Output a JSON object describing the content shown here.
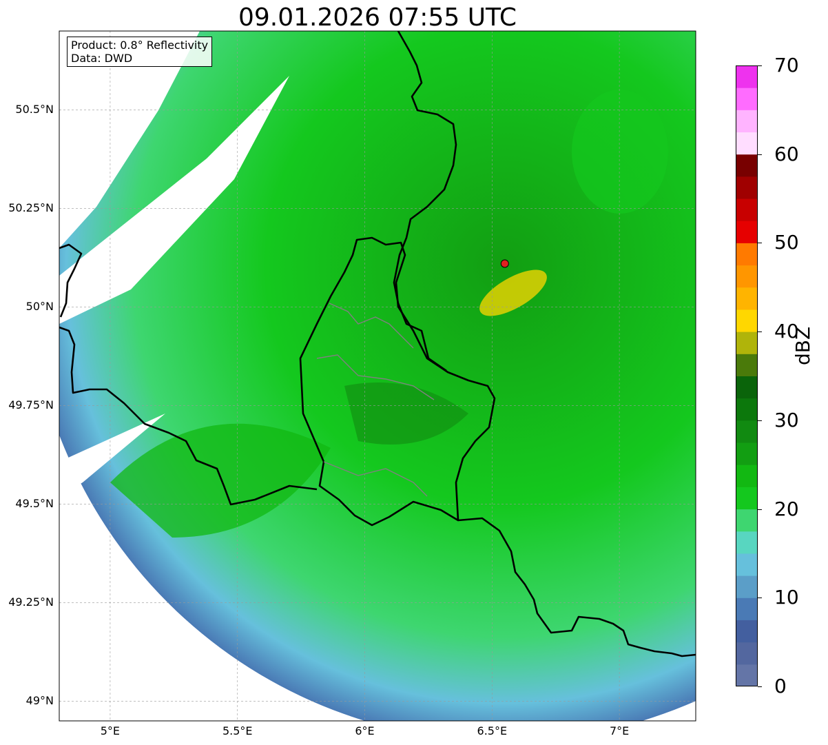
{
  "title": "09.01.2026 07:55 UTC",
  "info": {
    "line1": "Product: 0.8° Reflectivity",
    "line2": "Data: DWD"
  },
  "map": {
    "lon_range": [
      4.8,
      7.3
    ],
    "lat_range": [
      48.95,
      50.7
    ],
    "radar_site": {
      "lon": 6.55,
      "lat": 50.11,
      "color": "#e02020"
    },
    "lat_ticks": [
      {
        "value": 50.5,
        "label": "50.5°N"
      },
      {
        "value": 50.25,
        "label": "50.25°N"
      },
      {
        "value": 50.0,
        "label": "50°N"
      },
      {
        "value": 49.75,
        "label": "49.75°N"
      },
      {
        "value": 49.5,
        "label": "49.5°N"
      },
      {
        "value": 49.25,
        "label": "49.25°N"
      },
      {
        "value": 49.0,
        "label": "49°N"
      }
    ],
    "lon_ticks": [
      {
        "value": 5.0,
        "label": "5°E"
      },
      {
        "value": 5.5,
        "label": "5.5°E"
      },
      {
        "value": 6.0,
        "label": "6°E"
      },
      {
        "value": 6.5,
        "label": "6.5°E"
      },
      {
        "value": 7.0,
        "label": "7°E"
      }
    ]
  },
  "colorbar": {
    "label": "dBZ",
    "min": 0,
    "max": 70,
    "ticks": [
      {
        "value": 0,
        "label": "0"
      },
      {
        "value": 10,
        "label": "10"
      },
      {
        "value": 20,
        "label": "20"
      },
      {
        "value": 30,
        "label": "30"
      },
      {
        "value": 40,
        "label": "40"
      },
      {
        "value": 50,
        "label": "50"
      },
      {
        "value": 60,
        "label": "60"
      },
      {
        "value": 70,
        "label": "70"
      }
    ],
    "colors": [
      "#6475a7",
      "#53679f",
      "#435f9f",
      "#4a7ab5",
      "#5b9ec8",
      "#66c0dc",
      "#58d6c0",
      "#3ed670",
      "#14c81e",
      "#12b812",
      "#129e12",
      "#118a11",
      "#0c780c",
      "#0a640a",
      "#4a7a0a",
      "#b0b40a",
      "#ffd700",
      "#ffb400",
      "#ff9600",
      "#ff7a00",
      "#e60000",
      "#c80000",
      "#a00000",
      "#780000",
      "#ffddff",
      "#ffb4ff",
      "#ff6cff",
      "#ee32ee"
    ]
  }
}
